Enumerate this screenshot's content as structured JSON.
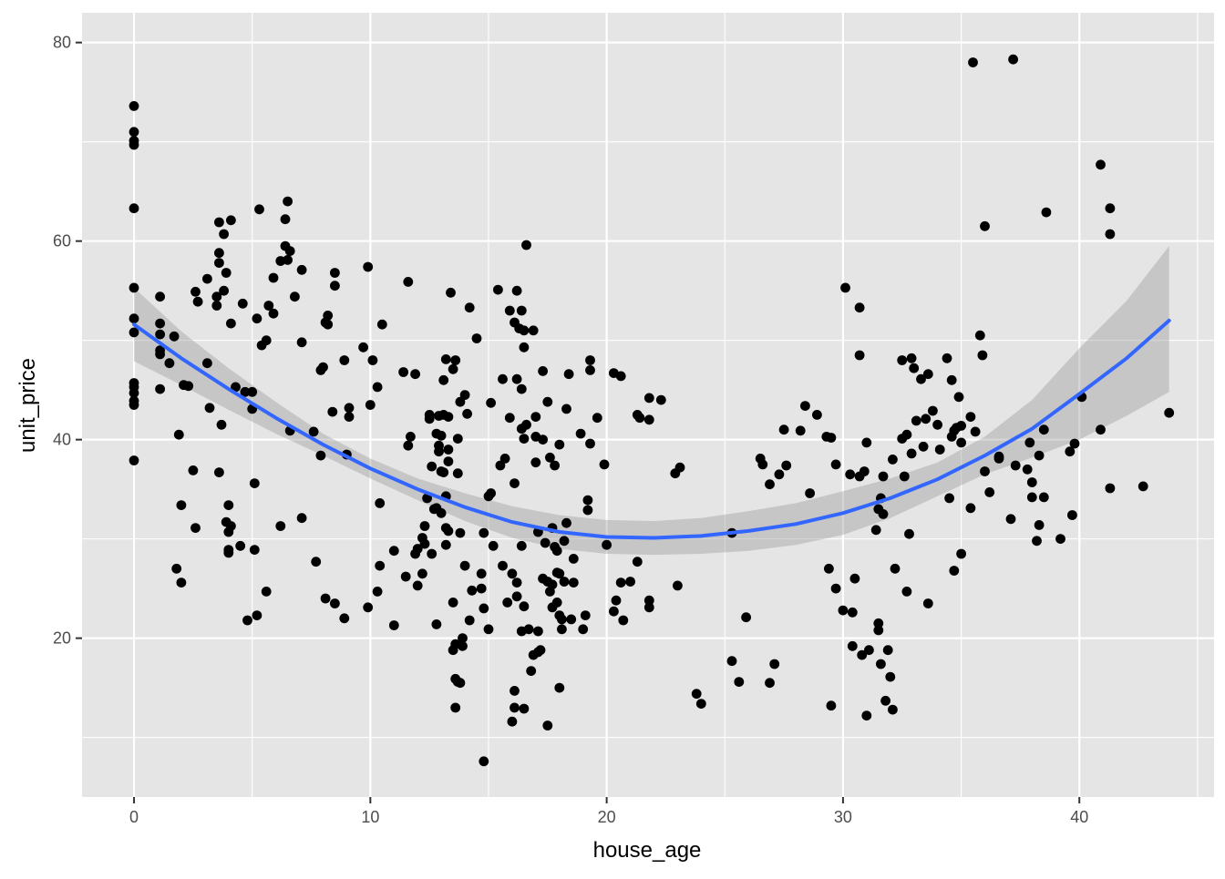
{
  "chart_data": {
    "type": "scatter",
    "title": "",
    "xlabel": "house_age",
    "ylabel": "unit_price",
    "xlim": [
      -2.2,
      45.7
    ],
    "ylim": [
      4.0,
      83.0
    ],
    "x_ticks": [
      0,
      10,
      20,
      30,
      40
    ],
    "y_ticks": [
      20,
      40,
      60,
      80
    ],
    "x_tick_labels": [
      "0",
      "10",
      "20",
      "30",
      "40"
    ],
    "y_tick_labels": [
      "20",
      "40",
      "60",
      "80"
    ],
    "grid": true,
    "legend": "none",
    "colors": {
      "panel_background": "#e5e5e5",
      "grid_major": "#ffffff",
      "points": "#000000",
      "smooth_line": "#3366ff",
      "confidence_band": "#999999"
    },
    "points": [
      [
        0,
        73.6
      ],
      [
        0,
        71.0
      ],
      [
        0,
        70.1
      ],
      [
        0,
        69.7
      ],
      [
        0,
        63.3
      ],
      [
        0,
        55.3
      ],
      [
        0,
        52.2
      ],
      [
        0,
        50.8
      ],
      [
        0,
        45.7
      ],
      [
        0,
        45.3
      ],
      [
        0,
        44.7
      ],
      [
        0,
        43.5
      ],
      [
        0,
        43.9
      ],
      [
        0,
        37.9
      ],
      [
        1.1,
        54.4
      ],
      [
        1.1,
        51.7
      ],
      [
        1.1,
        50.6
      ],
      [
        1.1,
        49.0
      ],
      [
        1.1,
        48.6
      ],
      [
        1.1,
        45.1
      ],
      [
        1.5,
        47.7
      ],
      [
        1.7,
        50.4
      ],
      [
        1.8,
        27.0
      ],
      [
        1.9,
        40.5
      ],
      [
        2.0,
        33.4
      ],
      [
        2.0,
        25.6
      ],
      [
        2.1,
        45.5
      ],
      [
        2.3,
        45.4
      ],
      [
        2.5,
        36.9
      ],
      [
        2.6,
        31.1
      ],
      [
        2.6,
        54.9
      ],
      [
        2.7,
        53.9
      ],
      [
        3.1,
        56.2
      ],
      [
        3.1,
        47.7
      ],
      [
        3.2,
        43.2
      ],
      [
        3.5,
        54.4
      ],
      [
        3.5,
        53.5
      ],
      [
        3.6,
        57.8
      ],
      [
        3.6,
        58.8
      ],
      [
        3.6,
        61.9
      ],
      [
        3.6,
        36.7
      ],
      [
        3.7,
        41.5
      ],
      [
        3.8,
        55.0
      ],
      [
        3.8,
        60.7
      ],
      [
        3.9,
        56.8
      ],
      [
        3.9,
        31.7
      ],
      [
        4.0,
        33.4
      ],
      [
        4.0,
        30.7
      ],
      [
        4.0,
        28.6
      ],
      [
        4.0,
        28.9
      ],
      [
        4.1,
        31.3
      ],
      [
        4.1,
        51.7
      ],
      [
        4.1,
        62.1
      ],
      [
        4.3,
        45.3
      ],
      [
        4.5,
        29.3
      ],
      [
        4.6,
        53.7
      ],
      [
        4.7,
        44.8
      ],
      [
        4.8,
        21.8
      ],
      [
        5.0,
        44.8
      ],
      [
        5.0,
        43.1
      ],
      [
        5.1,
        35.6
      ],
      [
        5.1,
        28.9
      ],
      [
        5.2,
        22.3
      ],
      [
        5.2,
        52.2
      ],
      [
        5.3,
        63.2
      ],
      [
        5.4,
        49.5
      ],
      [
        5.6,
        50.0
      ],
      [
        5.6,
        24.7
      ],
      [
        5.7,
        53.5
      ],
      [
        5.9,
        52.7
      ],
      [
        5.9,
        56.3
      ],
      [
        6.2,
        31.3
      ],
      [
        6.2,
        58.0
      ],
      [
        6.4,
        59.5
      ],
      [
        6.4,
        62.2
      ],
      [
        6.5,
        58.1
      ],
      [
        6.5,
        64.0
      ],
      [
        6.6,
        59.0
      ],
      [
        6.6,
        40.9
      ],
      [
        6.8,
        54.4
      ],
      [
        7.1,
        57.1
      ],
      [
        7.1,
        49.8
      ],
      [
        7.1,
        32.1
      ],
      [
        7.6,
        40.8
      ],
      [
        7.7,
        27.7
      ],
      [
        7.9,
        38.4
      ],
      [
        7.9,
        47.0
      ],
      [
        8.0,
        47.3
      ],
      [
        8.1,
        24.0
      ],
      [
        8.1,
        51.8
      ],
      [
        8.2,
        52.5
      ],
      [
        8.2,
        51.6
      ],
      [
        8.4,
        42.8
      ],
      [
        8.5,
        23.5
      ],
      [
        8.5,
        55.5
      ],
      [
        8.5,
        56.8
      ],
      [
        8.9,
        48.0
      ],
      [
        8.9,
        22.0
      ],
      [
        9.0,
        38.5
      ],
      [
        9.1,
        43.2
      ],
      [
        9.1,
        42.3
      ],
      [
        9.7,
        49.3
      ],
      [
        9.9,
        23.1
      ],
      [
        9.9,
        57.4
      ],
      [
        10.0,
        43.5
      ],
      [
        10.1,
        48.0
      ],
      [
        10.3,
        24.7
      ],
      [
        10.3,
        45.3
      ],
      [
        10.4,
        33.6
      ],
      [
        10.4,
        27.3
      ],
      [
        10.5,
        51.6
      ],
      [
        11.0,
        28.8
      ],
      [
        11.0,
        21.3
      ],
      [
        11.4,
        46.8
      ],
      [
        11.5,
        26.2
      ],
      [
        11.6,
        55.9
      ],
      [
        11.6,
        39.4
      ],
      [
        11.7,
        40.3
      ],
      [
        11.9,
        28.5
      ],
      [
        11.9,
        46.6
      ],
      [
        12.0,
        29.0
      ],
      [
        12.0,
        25.3
      ],
      [
        12.2,
        30.1
      ],
      [
        12.2,
        26.5
      ],
      [
        12.3,
        29.5
      ],
      [
        12.3,
        31.3
      ],
      [
        12.4,
        34.1
      ],
      [
        12.5,
        42.1
      ],
      [
        12.5,
        42.5
      ],
      [
        12.6,
        37.3
      ],
      [
        12.6,
        28.5
      ],
      [
        12.7,
        33.0
      ],
      [
        12.8,
        21.4
      ],
      [
        12.8,
        40.6
      ],
      [
        12.8,
        33.1
      ],
      [
        12.9,
        42.4
      ],
      [
        12.9,
        39.4
      ],
      [
        12.9,
        38.8
      ],
      [
        13.0,
        36.8
      ],
      [
        13.0,
        32.6
      ],
      [
        13.0,
        40.4
      ],
      [
        13.1,
        46.0
      ],
      [
        13.1,
        42.5
      ],
      [
        13.1,
        36.7
      ],
      [
        13.2,
        29.4
      ],
      [
        13.2,
        34.3
      ],
      [
        13.2,
        31.1
      ],
      [
        13.2,
        48.1
      ],
      [
        13.3,
        37.8
      ],
      [
        13.3,
        30.8
      ],
      [
        13.3,
        39.0
      ],
      [
        13.3,
        42.3
      ],
      [
        13.4,
        54.8
      ],
      [
        13.5,
        47.1
      ],
      [
        13.5,
        23.6
      ],
      [
        13.5,
        18.8
      ],
      [
        13.6,
        48.0
      ],
      [
        13.6,
        13.0
      ],
      [
        13.6,
        15.9
      ],
      [
        13.6,
        19.4
      ],
      [
        13.7,
        40.1
      ],
      [
        13.7,
        36.6
      ],
      [
        13.7,
        15.6
      ],
      [
        13.8,
        43.8
      ],
      [
        13.8,
        30.6
      ],
      [
        13.8,
        15.5
      ],
      [
        13.9,
        20.0
      ],
      [
        13.9,
        19.2
      ],
      [
        14.0,
        27.3
      ],
      [
        14.0,
        44.5
      ],
      [
        14.1,
        42.6
      ],
      [
        14.2,
        53.3
      ],
      [
        14.2,
        21.8
      ],
      [
        14.3,
        24.8
      ],
      [
        14.5,
        50.2
      ],
      [
        14.7,
        26.5
      ],
      [
        14.7,
        25.0
      ],
      [
        14.8,
        30.6
      ],
      [
        14.8,
        23.0
      ],
      [
        14.8,
        7.6
      ],
      [
        15.0,
        20.9
      ],
      [
        15.0,
        34.3
      ],
      [
        15.1,
        43.7
      ],
      [
        15.1,
        34.6
      ],
      [
        15.2,
        29.3
      ],
      [
        15.4,
        55.1
      ],
      [
        15.5,
        37.4
      ],
      [
        15.6,
        27.3
      ],
      [
        15.6,
        46.1
      ],
      [
        15.7,
        38.1
      ],
      [
        15.8,
        23.6
      ],
      [
        15.9,
        42.2
      ],
      [
        15.9,
        53.0
      ],
      [
        16.0,
        26.5
      ],
      [
        16.0,
        11.6
      ],
      [
        16.1,
        35.6
      ],
      [
        16.1,
        51.8
      ],
      [
        16.1,
        13.0
      ],
      [
        16.1,
        14.7
      ],
      [
        16.2,
        25.6
      ],
      [
        16.2,
        46.1
      ],
      [
        16.2,
        55.0
      ],
      [
        16.2,
        24.2
      ],
      [
        16.3,
        51.2
      ],
      [
        16.4,
        29.3
      ],
      [
        16.4,
        20.7
      ],
      [
        16.4,
        45.1
      ],
      [
        16.4,
        41.1
      ],
      [
        16.4,
        53.0
      ],
      [
        16.5,
        40.1
      ],
      [
        16.5,
        51.0
      ],
      [
        16.5,
        49.3
      ],
      [
        16.5,
        23.2
      ],
      [
        16.5,
        12.9
      ],
      [
        16.6,
        59.6
      ],
      [
        16.6,
        41.5
      ],
      [
        16.7,
        20.9
      ],
      [
        16.8,
        16.7
      ],
      [
        16.9,
        18.3
      ],
      [
        16.9,
        51.0
      ],
      [
        17.0,
        42.3
      ],
      [
        17.0,
        37.7
      ],
      [
        17.0,
        40.3
      ],
      [
        17.1,
        30.7
      ],
      [
        17.1,
        20.7
      ],
      [
        17.1,
        18.6
      ],
      [
        17.2,
        18.8
      ],
      [
        17.3,
        40.0
      ],
      [
        17.3,
        46.9
      ],
      [
        17.3,
        26.0
      ],
      [
        17.4,
        29.6
      ],
      [
        17.5,
        43.8
      ],
      [
        17.5,
        11.2
      ],
      [
        17.5,
        25.7
      ],
      [
        17.6,
        38.2
      ],
      [
        17.6,
        24.7
      ],
      [
        17.7,
        31.1
      ],
      [
        17.7,
        25.4
      ],
      [
        17.7,
        23.1
      ],
      [
        17.8,
        37.4
      ],
      [
        17.8,
        29.2
      ],
      [
        17.9,
        28.8
      ],
      [
        17.9,
        26.6
      ],
      [
        17.9,
        23.6
      ],
      [
        18.0,
        22.3
      ],
      [
        18.0,
        15.0
      ],
      [
        18.0,
        26.5
      ],
      [
        18.0,
        39.5
      ],
      [
        18.1,
        21.9
      ],
      [
        18.1,
        20.9
      ],
      [
        18.2,
        29.8
      ],
      [
        18.2,
        25.7
      ],
      [
        18.3,
        31.6
      ],
      [
        18.3,
        43.1
      ],
      [
        18.4,
        46.6
      ],
      [
        18.5,
        21.9
      ],
      [
        18.6,
        28.0
      ],
      [
        18.6,
        25.6
      ],
      [
        18.9,
        40.6
      ],
      [
        19.0,
        20.9
      ],
      [
        19.1,
        22.3
      ],
      [
        19.2,
        33.9
      ],
      [
        19.2,
        32.9
      ],
      [
        19.3,
        48.0
      ],
      [
        19.3,
        47.0
      ],
      [
        19.3,
        39.6
      ],
      [
        19.6,
        42.2
      ],
      [
        19.9,
        37.5
      ],
      [
        20.0,
        29.4
      ],
      [
        20.3,
        22.7
      ],
      [
        20.3,
        46.7
      ],
      [
        20.4,
        23.8
      ],
      [
        20.6,
        25.6
      ],
      [
        20.6,
        46.4
      ],
      [
        20.7,
        21.8
      ],
      [
        21.0,
        25.7
      ],
      [
        21.3,
        27.7
      ],
      [
        21.3,
        42.5
      ],
      [
        21.4,
        42.2
      ],
      [
        21.8,
        23.8
      ],
      [
        21.8,
        23.1
      ],
      [
        21.8,
        44.2
      ],
      [
        21.8,
        42.0
      ],
      [
        22.3,
        44.0
      ],
      [
        22.9,
        36.6
      ],
      [
        23.0,
        25.3
      ],
      [
        23.1,
        37.2
      ],
      [
        23.8,
        14.4
      ],
      [
        24.0,
        13.4
      ],
      [
        25.3,
        30.6
      ],
      [
        25.3,
        17.7
      ],
      [
        25.6,
        15.6
      ],
      [
        25.9,
        22.1
      ],
      [
        26.5,
        38.1
      ],
      [
        26.6,
        37.5
      ],
      [
        26.9,
        15.5
      ],
      [
        26.9,
        35.5
      ],
      [
        27.1,
        17.4
      ],
      [
        27.3,
        36.5
      ],
      [
        27.5,
        41.0
      ],
      [
        27.6,
        37.4
      ],
      [
        28.2,
        40.9
      ],
      [
        28.4,
        43.4
      ],
      [
        28.6,
        34.6
      ],
      [
        28.9,
        42.5
      ],
      [
        29.3,
        40.3
      ],
      [
        29.4,
        27.0
      ],
      [
        29.5,
        40.2
      ],
      [
        29.5,
        13.2
      ],
      [
        29.7,
        25.0
      ],
      [
        29.7,
        37.5
      ],
      [
        30.0,
        22.8
      ],
      [
        30.1,
        55.3
      ],
      [
        30.3,
        36.5
      ],
      [
        30.4,
        19.2
      ],
      [
        30.4,
        22.6
      ],
      [
        30.5,
        26.0
      ],
      [
        30.7,
        36.3
      ],
      [
        30.7,
        53.3
      ],
      [
        30.7,
        48.5
      ],
      [
        30.8,
        18.3
      ],
      [
        30.9,
        36.8
      ],
      [
        31.0,
        39.7
      ],
      [
        31.0,
        12.2
      ],
      [
        31.1,
        18.8
      ],
      [
        31.4,
        30.9
      ],
      [
        31.5,
        21.5
      ],
      [
        31.5,
        20.8
      ],
      [
        31.5,
        33.0
      ],
      [
        31.6,
        34.1
      ],
      [
        31.6,
        17.4
      ],
      [
        31.7,
        36.3
      ],
      [
        31.7,
        32.5
      ],
      [
        31.8,
        13.7
      ],
      [
        31.9,
        18.8
      ],
      [
        32.0,
        16.1
      ],
      [
        32.1,
        12.8
      ],
      [
        32.1,
        38.0
      ],
      [
        32.2,
        27.0
      ],
      [
        32.5,
        48.0
      ],
      [
        32.5,
        40.1
      ],
      [
        32.6,
        36.3
      ],
      [
        32.7,
        40.5
      ],
      [
        32.7,
        24.7
      ],
      [
        32.8,
        30.5
      ],
      [
        32.9,
        38.6
      ],
      [
        32.9,
        48.2
      ],
      [
        33.0,
        47.2
      ],
      [
        33.1,
        41.9
      ],
      [
        33.3,
        46.1
      ],
      [
        33.4,
        39.3
      ],
      [
        33.5,
        42.1
      ],
      [
        33.6,
        46.6
      ],
      [
        33.6,
        23.5
      ],
      [
        33.8,
        42.9
      ],
      [
        34.0,
        41.5
      ],
      [
        34.1,
        39.0
      ],
      [
        34.4,
        48.2
      ],
      [
        34.5,
        34.1
      ],
      [
        34.6,
        40.3
      ],
      [
        34.6,
        46.0
      ],
      [
        34.7,
        26.8
      ],
      [
        34.7,
        40.9
      ],
      [
        34.8,
        41.2
      ],
      [
        34.9,
        44.3
      ],
      [
        35.0,
        39.7
      ],
      [
        35.0,
        41.4
      ],
      [
        35.0,
        28.5
      ],
      [
        35.4,
        42.3
      ],
      [
        35.4,
        33.1
      ],
      [
        35.5,
        78.0
      ],
      [
        35.6,
        40.8
      ],
      [
        35.8,
        50.5
      ],
      [
        35.9,
        48.5
      ],
      [
        36.0,
        61.5
      ],
      [
        36.0,
        36.8
      ],
      [
        36.2,
        34.7
      ],
      [
        36.6,
        38.3
      ],
      [
        36.6,
        38.1
      ],
      [
        37.1,
        32.0
      ],
      [
        37.2,
        78.3
      ],
      [
        37.3,
        37.4
      ],
      [
        37.8,
        37.0
      ],
      [
        37.9,
        39.7
      ],
      [
        38.0,
        34.2
      ],
      [
        38.0,
        35.7
      ],
      [
        38.2,
        29.8
      ],
      [
        38.3,
        31.4
      ],
      [
        38.3,
        38.4
      ],
      [
        38.5,
        34.2
      ],
      [
        38.5,
        41.0
      ],
      [
        38.6,
        62.9
      ],
      [
        39.2,
        30.0
      ],
      [
        39.6,
        38.8
      ],
      [
        39.7,
        32.4
      ],
      [
        39.8,
        39.6
      ],
      [
        40.1,
        44.3
      ],
      [
        40.9,
        67.7
      ],
      [
        40.9,
        41.0
      ],
      [
        41.3,
        63.3
      ],
      [
        41.3,
        60.7
      ],
      [
        41.3,
        35.1
      ],
      [
        42.7,
        35.3
      ],
      [
        43.8,
        42.7
      ]
    ],
    "smooth_line": {
      "x": [
        0,
        2,
        4,
        6,
        8,
        10,
        12,
        14,
        16,
        18,
        20,
        22,
        24,
        26,
        28,
        30,
        32,
        34,
        36,
        38,
        40,
        42,
        43.8
      ],
      "y": [
        51.6,
        48.2,
        45.1,
        42.2,
        39.5,
        37.1,
        35.0,
        33.2,
        31.7,
        30.7,
        30.2,
        30.1,
        30.3,
        30.8,
        31.5,
        32.6,
        34.1,
        36.0,
        38.4,
        41.1,
        44.6,
        48.2,
        52.0
      ],
      "lower": [
        47.9,
        45.5,
        43.0,
        40.6,
        38.4,
        36.1,
        33.9,
        31.8,
        30.1,
        29.0,
        28.5,
        28.4,
        28.5,
        28.8,
        29.4,
        30.4,
        32.1,
        34.3,
        36.5,
        38.2,
        40.0,
        42.4,
        44.8
      ],
      "upper": [
        55.3,
        50.9,
        47.2,
        43.8,
        40.6,
        38.1,
        36.1,
        34.6,
        33.3,
        32.4,
        31.9,
        31.8,
        32.1,
        32.8,
        33.6,
        34.8,
        36.1,
        37.7,
        40.3,
        44.0,
        49.2,
        54.0,
        59.5
      ]
    }
  }
}
